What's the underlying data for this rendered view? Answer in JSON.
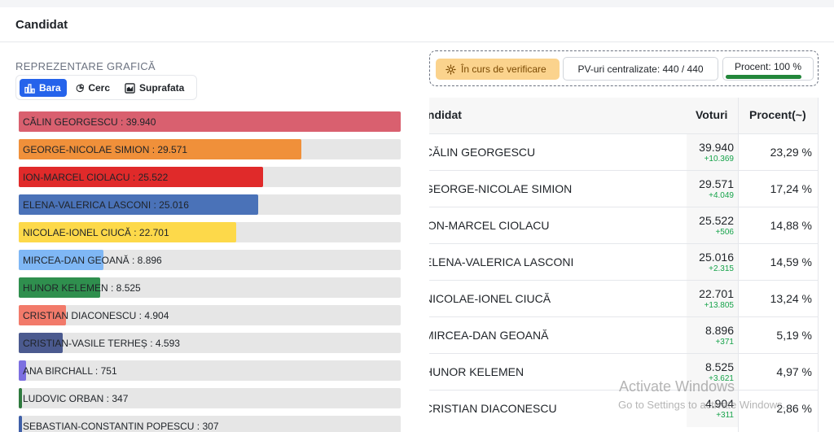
{
  "header": {
    "title": "Candidat"
  },
  "chart_section": {
    "label": "REPREZENTARE GRAFICĂ",
    "tabs": [
      {
        "label": "Bara",
        "icon": "bar-chart-icon",
        "active": true
      },
      {
        "label": "Cerc",
        "icon": "pie-chart-icon",
        "active": false
      },
      {
        "label": "Suprafata",
        "icon": "area-chart-icon",
        "active": false
      }
    ]
  },
  "chart_data": {
    "type": "bar",
    "orientation": "horizontal",
    "bars": [
      {
        "label": "CĂLIN GEORGESCU : 39.940",
        "value": 39940,
        "color": "#d9606f"
      },
      {
        "label": "GEORGE-NICOLAE SIMION : 29.571",
        "value": 29571,
        "color": "#f0903a"
      },
      {
        "label": "ION-MARCEL CIOLACU : 25.522",
        "value": 25522,
        "color": "#e02a2a"
      },
      {
        "label": "ELENA-VALERICA LASCONI : 25.016",
        "value": 25016,
        "color": "#4a72b8"
      },
      {
        "label": "NICOLAE-IONEL CIUCĂ : 22.701",
        "value": 22701,
        "color": "#fdd94a"
      },
      {
        "label": "MIRCEA-DAN GEOANĂ : 8.896",
        "value": 8896,
        "color": "#7fb7f5"
      },
      {
        "label": "HUNOR KELEMEN : 8.525",
        "value": 8525,
        "color": "#2f8f4e"
      },
      {
        "label": "CRISTIAN DIACONESCU : 4.904",
        "value": 4904,
        "color": "#f27a6a"
      },
      {
        "label": "CRISTIAN-VASILE TERHEȘ : 4.593",
        "value": 4593,
        "color": "#4b5a8f"
      },
      {
        "label": "ANA BIRCHALL : 751",
        "value": 751,
        "color": "#7c6fe0"
      },
      {
        "label": "LUDOVIC ORBAN : 347",
        "value": 347,
        "color": "#2f7a3e"
      },
      {
        "label": "SEBASTIAN-CONSTANTIN POPESCU : 307",
        "value": 307,
        "color": "#3f5fa8"
      }
    ],
    "max": 39940
  },
  "status": {
    "verif_label": "În curs de verificare",
    "pv_label": "PV-uri centralizate: 440 / 440",
    "pct_label": "Procent: 100 %",
    "pct_value": 1.0
  },
  "table": {
    "headers": {
      "candidate": "Candidat",
      "votes": "Voturi",
      "percent": "Procent(~)"
    },
    "rows": [
      {
        "name": "CĂLIN GEORGESCU",
        "votes": "39.940",
        "delta": "+10.369",
        "pct": "23,29 %"
      },
      {
        "name": "GEORGE-NICOLAE SIMION",
        "votes": "29.571",
        "delta": "+4.049",
        "pct": "17,24 %"
      },
      {
        "name": "ION-MARCEL CIOLACU",
        "votes": "25.522",
        "delta": "+506",
        "pct": "14,88 %"
      },
      {
        "name": "ELENA-VALERICA LASCONI",
        "votes": "25.016",
        "delta": "+2.315",
        "pct": "14,59 %"
      },
      {
        "name": "NICOLAE-IONEL CIUCĂ",
        "votes": "22.701",
        "delta": "+13.805",
        "pct": "13,24 %"
      },
      {
        "name": "MIRCEA-DAN GEOANĂ",
        "votes": "8.896",
        "delta": "+371",
        "pct": "5,19 %"
      },
      {
        "name": "HUNOR KELEMEN",
        "votes": "8.525",
        "delta": "+3.621",
        "pct": "4,97 %"
      },
      {
        "name": "CRISTIAN DIACONESCU",
        "votes": "4.904",
        "delta": "+311",
        "pct": "2,86 %"
      }
    ]
  },
  "watermark": {
    "line1": "Activate Windows",
    "line2": "Go to Settings to activate Windows."
  }
}
